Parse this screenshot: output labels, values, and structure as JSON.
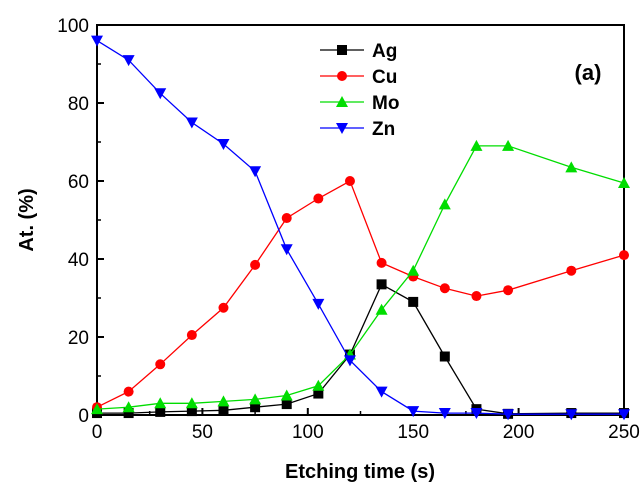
{
  "chart_data": {
    "type": "line",
    "panel_label": "(a)",
    "xlabel": "Etching time (s)",
    "ylabel": "At. (%)",
    "xlim": [
      0,
      250
    ],
    "ylim": [
      0,
      100
    ],
    "x_ticks": [
      0,
      50,
      100,
      150,
      200,
      250
    ],
    "y_ticks": [
      0,
      20,
      40,
      60,
      80,
      100
    ],
    "grid": false,
    "legend_position": "top-center",
    "series": [
      {
        "name": "Ag",
        "color": "#000000",
        "marker": "square",
        "x": [
          0,
          15,
          30,
          45,
          60,
          75,
          90,
          105,
          120,
          135,
          150,
          165,
          180,
          195,
          225,
          250
        ],
        "y": [
          0.5,
          0.5,
          0.8,
          1.0,
          1.2,
          2.0,
          2.8,
          5.5,
          15.5,
          33.5,
          29.0,
          15.0,
          1.5,
          0.3,
          0.5,
          0.5
        ]
      },
      {
        "name": "Cu",
        "color": "#ff0000",
        "marker": "circle",
        "x": [
          0,
          15,
          30,
          45,
          60,
          75,
          90,
          105,
          120,
          135,
          150,
          165,
          180,
          195,
          225,
          250
        ],
        "y": [
          2.0,
          6.0,
          13.0,
          20.5,
          27.5,
          38.5,
          50.5,
          55.5,
          60.0,
          39.0,
          35.5,
          32.5,
          30.5,
          32.0,
          37.0,
          41.0
        ]
      },
      {
        "name": "Mo",
        "color": "#00dd00",
        "marker": "triangle-up",
        "x": [
          0,
          15,
          30,
          45,
          60,
          75,
          90,
          105,
          120,
          135,
          150,
          165,
          180,
          195,
          225,
          250
        ],
        "y": [
          1.5,
          2.0,
          3.0,
          3.0,
          3.5,
          4.0,
          5.0,
          7.5,
          15.5,
          27.0,
          37.0,
          54.0,
          69.0,
          69.0,
          63.5,
          59.5
        ]
      },
      {
        "name": "Zn",
        "color": "#0000ff",
        "marker": "triangle-down",
        "x": [
          0,
          15,
          30,
          45,
          60,
          75,
          90,
          105,
          120,
          135,
          150,
          165,
          180,
          195,
          225,
          250
        ],
        "y": [
          96.0,
          91.0,
          82.5,
          75.0,
          69.5,
          62.5,
          42.5,
          28.5,
          14.0,
          6.0,
          1.0,
          0.5,
          0.5,
          0.2,
          0.2,
          0.2
        ]
      }
    ]
  }
}
